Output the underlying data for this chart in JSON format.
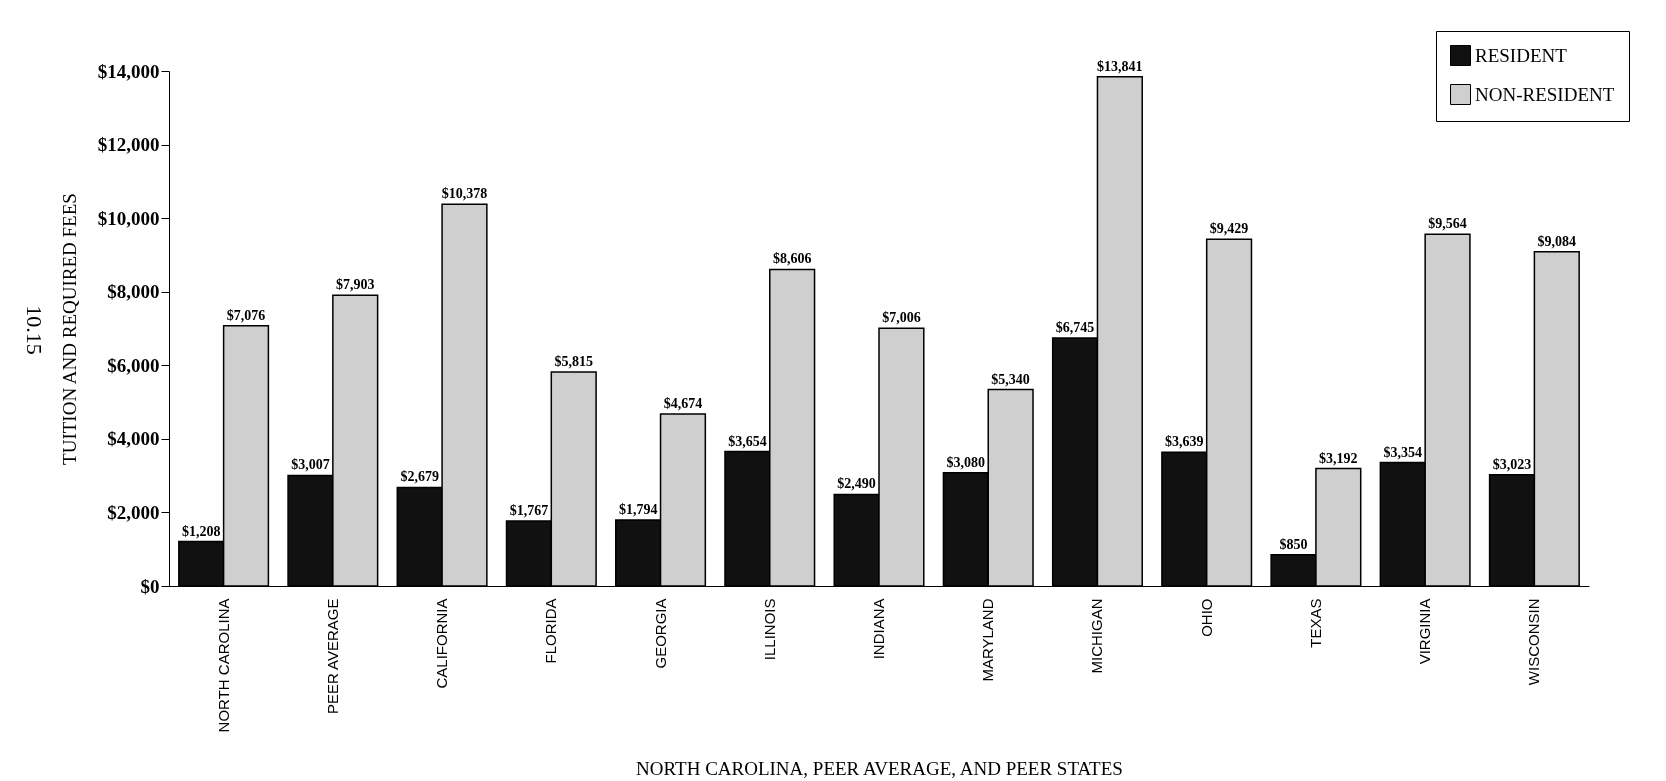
{
  "chart_data": {
    "type": "bar",
    "xlabel": "NORTH CAROLINA, PEER AVERAGE, AND PEER STATES",
    "ylabel": "TUITION AND REQUIRED FEES",
    "categories": [
      "NORTH CAROLINA",
      "PEER AVERAGE",
      "CALIFORNIA",
      "FLORIDA",
      "GEORGIA",
      "ILLINOIS",
      "INDIANA",
      "MARYLAND",
      "MICHIGAN",
      "OHIO",
      "TEXAS",
      "VIRGINIA",
      "WISCONSIN"
    ],
    "series": [
      {
        "name": "RESIDENT",
        "color": "#111111",
        "values": [
          1208,
          3007,
          2679,
          1767,
          1794,
          3654,
          2490,
          3080,
          6745,
          3639,
          850,
          3354,
          3023
        ],
        "value_labels": [
          "$1,208",
          "$3,007",
          "$2,679",
          "$1,767",
          "$1,794",
          "$3,654",
          "$2,490",
          "$3,080",
          "$6,745",
          "$3,639",
          "$850",
          "$3,354",
          "$3,023"
        ]
      },
      {
        "name": "NON-RESIDENT",
        "color": "#cfcfcf",
        "values": [
          7076,
          7903,
          10378,
          5815,
          4674,
          8606,
          7006,
          5340,
          13841,
          9429,
          3192,
          9564,
          9084
        ],
        "value_labels": [
          "$7,076",
          "$7,903",
          "$10,378",
          "$5,815",
          "$4,674",
          "$8,606",
          "$7,006",
          "$5,340",
          "$13,841",
          "$9,429",
          "$3,192",
          "$9,564",
          "$9,084"
        ]
      }
    ],
    "ylim": [
      0,
      14000
    ],
    "yticks": [
      {
        "value": 0,
        "label": "$0"
      },
      {
        "value": 2000,
        "label": "$2,000"
      },
      {
        "value": 4000,
        "label": "$4,000"
      },
      {
        "value": 6000,
        "label": "$6,000"
      },
      {
        "value": 8000,
        "label": "$8,000"
      },
      {
        "value": 10000,
        "label": "$10,000"
      },
      {
        "value": 12000,
        "label": "$12,000"
      },
      {
        "value": 14000,
        "label": "$14,000"
      }
    ],
    "legend": "top right",
    "annotations": [
      "10.15"
    ]
  }
}
